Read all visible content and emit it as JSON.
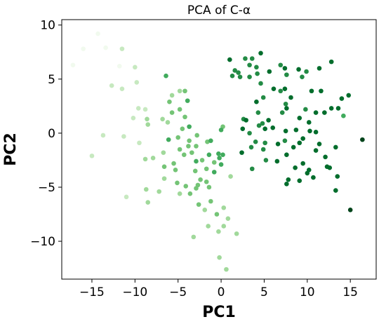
{
  "chart_data": {
    "type": "scatter",
    "title": "PCA of C-α",
    "xlabel": "PC1",
    "ylabel": "PC2",
    "xlim": [
      -18.5,
      18
    ],
    "ylim": [
      -13.5,
      10.5
    ],
    "xticks": [
      -15,
      -10,
      -5,
      0,
      5,
      10,
      15
    ],
    "yticks": [
      -10,
      -5,
      0,
      5,
      10
    ],
    "xtick_labels": [
      "−15",
      "−10",
      "−5",
      "0",
      "5",
      "10",
      "15"
    ],
    "ytick_labels": [
      "−10",
      "−5",
      "0",
      "5",
      "10"
    ],
    "grid": false,
    "legend": "none",
    "color_scale": {
      "description": "sequential greens, light to dark by frame order",
      "colors": [
        "#f1faee",
        "#c7e9c0",
        "#a1d99b",
        "#74c476",
        "#41ab5d",
        "#238b45",
        "#006d2c",
        "#00441b"
      ]
    },
    "points": [
      {
        "x": -14.3,
        "y": 9.2,
        "c": 0.02
      },
      {
        "x": -16.0,
        "y": 7.8,
        "c": 0.04
      },
      {
        "x": -17.2,
        "y": 6.3,
        "c": 0.03
      },
      {
        "x": -13.4,
        "y": 7.9,
        "c": 0.06
      },
      {
        "x": -11.5,
        "y": 7.8,
        "c": 0.08
      },
      {
        "x": -10.0,
        "y": 6.1,
        "c": 0.09
      },
      {
        "x": -11.8,
        "y": 6.2,
        "c": 0.07
      },
      {
        "x": -9.8,
        "y": 4.7,
        "c": 0.11
      },
      {
        "x": -12.7,
        "y": 4.4,
        "c": 0.1
      },
      {
        "x": -11.5,
        "y": 4.1,
        "c": 0.12
      },
      {
        "x": -8.8,
        "y": 2.2,
        "c": 0.15
      },
      {
        "x": -9.6,
        "y": 2.3,
        "c": 0.14
      },
      {
        "x": -10.2,
        "y": 1.4,
        "c": 0.16
      },
      {
        "x": -13.7,
        "y": -0.2,
        "c": 0.13
      },
      {
        "x": -11.3,
        "y": -0.3,
        "c": 0.15
      },
      {
        "x": -15.0,
        "y": -2.1,
        "c": 0.12
      },
      {
        "x": -9.5,
        "y": -0.9,
        "c": 0.2
      },
      {
        "x": -8.5,
        "y": 0.8,
        "c": 0.22
      },
      {
        "x": -8.8,
        "y": -2.4,
        "c": 0.25
      },
      {
        "x": -8.6,
        "y": 1.3,
        "c": 0.34
      },
      {
        "x": -11.0,
        "y": -5.9,
        "c": 0.17
      },
      {
        "x": -8.7,
        "y": -5.2,
        "c": 0.32
      },
      {
        "x": -8.5,
        "y": -6.4,
        "c": 0.35
      },
      {
        "x": -7.2,
        "y": -5.4,
        "c": 0.3
      },
      {
        "x": -6.6,
        "y": -4.2,
        "c": 0.28
      },
      {
        "x": -7.9,
        "y": -2.3,
        "c": 0.27
      },
      {
        "x": -6.7,
        "y": -1.8,
        "c": 0.26
      },
      {
        "x": -6.8,
        "y": 1.3,
        "c": 0.31
      },
      {
        "x": -6.2,
        "y": 1.0,
        "c": 0.29
      },
      {
        "x": -6.0,
        "y": 2.9,
        "c": 0.36
      },
      {
        "x": -6.4,
        "y": 5.3,
        "c": 0.6
      },
      {
        "x": -5.7,
        "y": 3.5,
        "c": 0.33
      },
      {
        "x": -5.7,
        "y": 1.9,
        "c": 0.38
      },
      {
        "x": -4.8,
        "y": 3.9,
        "c": 0.34
      },
      {
        "x": -4.2,
        "y": 3.9,
        "c": 0.37
      },
      {
        "x": -3.9,
        "y": 3.0,
        "c": 0.6
      },
      {
        "x": -4.8,
        "y": 2.2,
        "c": 0.39
      },
      {
        "x": -4.2,
        "y": 1.5,
        "c": 0.41
      },
      {
        "x": -6.1,
        "y": -0.6,
        "c": 0.55
      },
      {
        "x": -5.0,
        "y": -0.4,
        "c": 0.44
      },
      {
        "x": -4.5,
        "y": 0.4,
        "c": 0.42
      },
      {
        "x": -4.8,
        "y": -1.5,
        "c": 0.4
      },
      {
        "x": -3.7,
        "y": -0.7,
        "c": 0.43
      },
      {
        "x": -3.7,
        "y": 0.6,
        "c": 0.52
      },
      {
        "x": -2.8,
        "y": -0.2,
        "c": 0.45
      },
      {
        "x": -3.4,
        "y": -1.8,
        "c": 0.46
      },
      {
        "x": -2.9,
        "y": -2.6,
        "c": 0.62
      },
      {
        "x": -2.2,
        "y": -2.5,
        "c": 0.48
      },
      {
        "x": -1.6,
        "y": -0.8,
        "c": 0.47
      },
      {
        "x": -1.2,
        "y": -0.7,
        "c": 0.5
      },
      {
        "x": -0.8,
        "y": -2.7,
        "c": 0.49
      },
      {
        "x": -1.4,
        "y": -2.0,
        "c": 0.51
      },
      {
        "x": -0.3,
        "y": -1.9,
        "c": 0.53
      },
      {
        "x": -1.7,
        "y": -3.3,
        "c": 0.44
      },
      {
        "x": 0.0,
        "y": 0.3,
        "c": 0.55
      },
      {
        "x": 0.2,
        "y": 0.6,
        "c": 0.46
      },
      {
        "x": 0.2,
        "y": -2.0,
        "c": 0.52
      },
      {
        "x": -0.2,
        "y": -2.3,
        "c": 0.62
      },
      {
        "x": 0.0,
        "y": -2.9,
        "c": 0.58
      },
      {
        "x": -0.8,
        "y": -3.6,
        "c": 0.5
      },
      {
        "x": -6.6,
        "y": -3.1,
        "c": 0.36
      },
      {
        "x": -5.5,
        "y": -2.8,
        "c": 0.41
      },
      {
        "x": -5.3,
        "y": -3.4,
        "c": 0.38
      },
      {
        "x": -5.1,
        "y": -4.6,
        "c": 0.42
      },
      {
        "x": -4.1,
        "y": -4.9,
        "c": 0.4
      },
      {
        "x": -3.0,
        "y": -3.5,
        "c": 0.45
      },
      {
        "x": -2.7,
        "y": -4.8,
        "c": 0.43
      },
      {
        "x": -2.4,
        "y": -4.3,
        "c": 0.47
      },
      {
        "x": -1.7,
        "y": -4.5,
        "c": 0.41
      },
      {
        "x": -1.4,
        "y": -5.0,
        "c": 0.48
      },
      {
        "x": -2.9,
        "y": -5.1,
        "c": 0.39
      },
      {
        "x": -3.6,
        "y": -5.6,
        "c": 0.37
      },
      {
        "x": -4.8,
        "y": -5.6,
        "c": 0.35
      },
      {
        "x": -2.6,
        "y": -6.6,
        "c": 0.36
      },
      {
        "x": -1.2,
        "y": -6.3,
        "c": 0.4
      },
      {
        "x": -1.9,
        "y": -7.1,
        "c": 0.33
      },
      {
        "x": -1.5,
        "y": -8.6,
        "c": 0.31
      },
      {
        "x": -0.5,
        "y": -7.5,
        "c": 0.38
      },
      {
        "x": 0.3,
        "y": -6.9,
        "c": 0.34
      },
      {
        "x": 0.8,
        "y": -7.9,
        "c": 0.32
      },
      {
        "x": 0.3,
        "y": -8.6,
        "c": 0.29
      },
      {
        "x": -0.3,
        "y": -9.1,
        "c": 0.27
      },
      {
        "x": -3.2,
        "y": -9.6,
        "c": 0.26
      },
      {
        "x": -0.2,
        "y": -11.5,
        "c": 0.24
      },
      {
        "x": 0.6,
        "y": -12.6,
        "c": 0.22
      },
      {
        "x": 1.8,
        "y": -9.3,
        "c": 0.25
      },
      {
        "x": 1.1,
        "y": -4.0,
        "c": 0.3
      },
      {
        "x": -3.8,
        "y": -1.2,
        "c": 0.42
      },
      {
        "x": -4.3,
        "y": -2.0,
        "c": 0.39
      },
      {
        "x": -2.9,
        "y": -1.2,
        "c": 0.44
      },
      {
        "x": 1.0,
        "y": 6.8,
        "c": 0.85
      },
      {
        "x": 1.6,
        "y": 5.8,
        "c": 0.68
      },
      {
        "x": 2.0,
        "y": 5.6,
        "c": 0.7
      },
      {
        "x": 2.2,
        "y": 5.2,
        "c": 0.72
      },
      {
        "x": 1.3,
        "y": 5.3,
        "c": 0.66
      },
      {
        "x": 2.8,
        "y": 6.9,
        "c": 0.74
      },
      {
        "x": 3.3,
        "y": 6.3,
        "c": 0.7
      },
      {
        "x": 3.6,
        "y": 6.9,
        "c": 0.73
      },
      {
        "x": 4.1,
        "y": 6.1,
        "c": 0.71
      },
      {
        "x": 4.2,
        "y": 5.5,
        "c": 0.69
      },
      {
        "x": 3.3,
        "y": 5.2,
        "c": 0.75
      },
      {
        "x": 4.6,
        "y": 7.4,
        "c": 0.86
      },
      {
        "x": 4.6,
        "y": 4.6,
        "c": 0.78
      },
      {
        "x": 5.6,
        "y": 5.7,
        "c": 0.81
      },
      {
        "x": 6.9,
        "y": 6.3,
        "c": 0.76
      },
      {
        "x": 7.4,
        "y": 6.0,
        "c": 0.8
      },
      {
        "x": 7.6,
        "y": 5.4,
        "c": 0.74
      },
      {
        "x": 9.0,
        "y": 5.9,
        "c": 0.8
      },
      {
        "x": 9.4,
        "y": 5.2,
        "c": 0.77
      },
      {
        "x": 9.9,
        "y": 5.7,
        "c": 0.75
      },
      {
        "x": 11.4,
        "y": 6.0,
        "c": 0.79
      },
      {
        "x": 12.8,
        "y": 6.6,
        "c": 0.85
      },
      {
        "x": 10.5,
        "y": 3.9,
        "c": 0.82
      },
      {
        "x": 11.6,
        "y": 3.9,
        "c": 0.8
      },
      {
        "x": 13.6,
        "y": 2.3,
        "c": 0.9
      },
      {
        "x": 14.0,
        "y": 3.2,
        "c": 0.88
      },
      {
        "x": 14.8,
        "y": 3.5,
        "c": 0.87
      },
      {
        "x": 12.8,
        "y": 2.3,
        "c": 0.84
      },
      {
        "x": 12.0,
        "y": 1.9,
        "c": 0.82
      },
      {
        "x": 14.2,
        "y": 1.6,
        "c": 0.62
      },
      {
        "x": 6.1,
        "y": 4.1,
        "c": 0.79
      },
      {
        "x": 6.9,
        "y": 3.9,
        "c": 0.77
      },
      {
        "x": 7.4,
        "y": 4.1,
        "c": 0.82
      },
      {
        "x": 8.1,
        "y": 3.3,
        "c": 0.84
      },
      {
        "x": 7.5,
        "y": 2.7,
        "c": 0.78
      },
      {
        "x": 7.6,
        "y": 2.3,
        "c": 0.8
      },
      {
        "x": 7.1,
        "y": 1.9,
        "c": 0.76
      },
      {
        "x": 4.9,
        "y": 3.3,
        "c": 0.72
      },
      {
        "x": 4.1,
        "y": 2.9,
        "c": 0.83
      },
      {
        "x": 4.3,
        "y": 1.9,
        "c": 0.74
      },
      {
        "x": 5.5,
        "y": 1.2,
        "c": 0.79
      },
      {
        "x": 4.8,
        "y": 0.9,
        "c": 0.77
      },
      {
        "x": 2.6,
        "y": 1.3,
        "c": 0.73
      },
      {
        "x": 2.9,
        "y": 1.2,
        "c": 0.9
      },
      {
        "x": 2.5,
        "y": 0.4,
        "c": 0.82
      },
      {
        "x": 3.3,
        "y": 0.0,
        "c": 0.76
      },
      {
        "x": 4.4,
        "y": 0.7,
        "c": 0.74
      },
      {
        "x": 5.1,
        "y": 0.4,
        "c": 0.8
      },
      {
        "x": 6.0,
        "y": 0.5,
        "c": 0.79
      },
      {
        "x": 7.5,
        "y": 0.2,
        "c": 0.84
      },
      {
        "x": 8.7,
        "y": 0.3,
        "c": 0.85
      },
      {
        "x": 9.1,
        "y": 1.4,
        "c": 0.83
      },
      {
        "x": 10.2,
        "y": 1.0,
        "c": 0.8
      },
      {
        "x": 10.3,
        "y": 0.2,
        "c": 0.82
      },
      {
        "x": 11.0,
        "y": 0.1,
        "c": 0.86
      },
      {
        "x": 11.0,
        "y": 1.9,
        "c": 0.87
      },
      {
        "x": 9.8,
        "y": 2.2,
        "c": 0.78
      },
      {
        "x": 9.5,
        "y": -0.5,
        "c": 0.89
      },
      {
        "x": 9.1,
        "y": -0.9,
        "c": 0.81
      },
      {
        "x": 8.4,
        "y": -1.3,
        "c": 0.8
      },
      {
        "x": 7.4,
        "y": -0.7,
        "c": 0.77
      },
      {
        "x": 6.6,
        "y": -1.0,
        "c": 0.83
      },
      {
        "x": 5.1,
        "y": -0.9,
        "c": 0.78
      },
      {
        "x": 4.9,
        "y": -1.5,
        "c": 0.75
      },
      {
        "x": 4.0,
        "y": -0.8,
        "c": 0.76
      },
      {
        "x": 3.5,
        "y": -1.3,
        "c": 0.74
      },
      {
        "x": 2.4,
        "y": -1.8,
        "c": 0.79
      },
      {
        "x": 3.6,
        "y": -3.3,
        "c": 0.77
      },
      {
        "x": 5.2,
        "y": -2.5,
        "c": 0.78
      },
      {
        "x": 6.5,
        "y": -2.6,
        "c": 0.82
      },
      {
        "x": 7.6,
        "y": -2.0,
        "c": 0.84
      },
      {
        "x": 8.6,
        "y": -3.2,
        "c": 0.8
      },
      {
        "x": 9.5,
        "y": -2.8,
        "c": 0.85
      },
      {
        "x": 10.0,
        "y": -3.7,
        "c": 0.86
      },
      {
        "x": 11.0,
        "y": -1.6,
        "c": 0.83
      },
      {
        "x": 11.4,
        "y": -1.0,
        "c": 0.85
      },
      {
        "x": 12.1,
        "y": -2.2,
        "c": 0.82
      },
      {
        "x": 12.3,
        "y": -3.1,
        "c": 0.81
      },
      {
        "x": 12.6,
        "y": -3.2,
        "c": 0.84
      },
      {
        "x": 10.7,
        "y": -4.1,
        "c": 0.9
      },
      {
        "x": 13.3,
        "y": -1.3,
        "c": 0.88
      },
      {
        "x": 13.3,
        "y": -5.3,
        "c": 0.87
      },
      {
        "x": 13.5,
        "y": -4.0,
        "c": 0.92
      },
      {
        "x": 15.0,
        "y": -7.1,
        "c": 0.97
      },
      {
        "x": 16.4,
        "y": -0.6,
        "c": 0.94
      },
      {
        "x": 7.8,
        "y": -4.3,
        "c": 0.82
      },
      {
        "x": 7.6,
        "y": -4.7,
        "c": 0.86
      },
      {
        "x": 9.1,
        "y": -4.4,
        "c": 0.87
      },
      {
        "x": 10.2,
        "y": -3.4,
        "c": 0.84
      }
    ]
  }
}
